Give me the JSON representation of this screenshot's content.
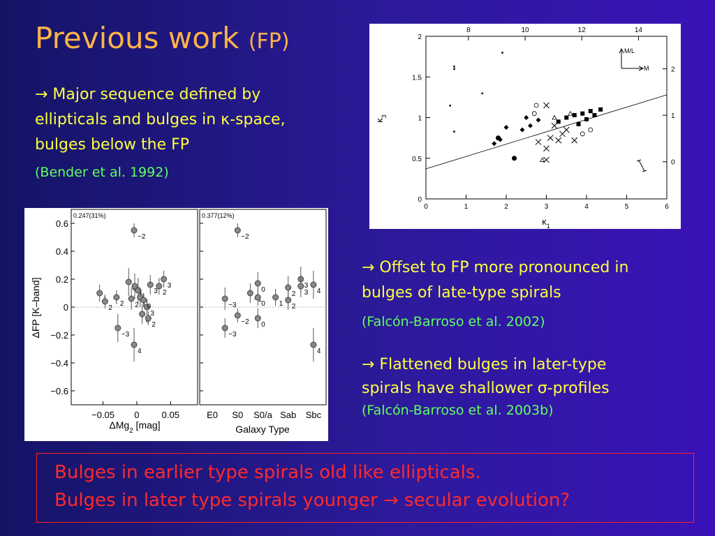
{
  "title": "Previous work",
  "title_suffix": "(FP)",
  "bullets": [
    {
      "lines": [
        "→ Major sequence defined by",
        "ellipticals and bulges in κ-space,",
        "bulges below the FP"
      ],
      "ref": "(Bender et al. 1992)"
    },
    {
      "lines": [
        "→ Offset to FP more pronounced in",
        "bulges of late-type spirals"
      ],
      "ref": "(Falcón-Barroso et al. 2002)"
    },
    {
      "lines": [
        "→ Flattened bulges in later-type",
        "spirals have shallower σ-profiles"
      ],
      "ref": "(Falcón-Barroso et al. 2003b)"
    }
  ],
  "conclusion": [
    "Bulges in earlier type spirals old like ellipticals.",
    "Bulges in later type spirals younger → secular evolution?"
  ],
  "figure_kappa": {
    "xlabel": "κ",
    "xlabel_sub": "1",
    "ylabel": "κ",
    "ylabel_sub": "3",
    "xlim": [
      0,
      6
    ],
    "ylim": [
      0,
      2
    ],
    "xticks": [
      0,
      1,
      2,
      3,
      4,
      5,
      6
    ],
    "yticks": [
      0,
      0.5,
      1,
      1.5,
      2
    ],
    "top_ticks": [
      8,
      10,
      12,
      14
    ],
    "top_lim": [
      6.5,
      15
    ],
    "right_ticks": [
      0,
      1,
      2
    ],
    "right_lim": [
      -0.8,
      2.7
    ],
    "inset_up": "M/L",
    "inset_right": "M",
    "fit": [
      [
        0,
        0.37
      ],
      [
        6,
        1.28
      ]
    ],
    "points": [
      {
        "x": 0.7,
        "y": 1.6,
        "m": "dot"
      },
      {
        "x": 0.7,
        "y": 1.63,
        "m": "dot"
      },
      {
        "x": 0.6,
        "y": 1.15,
        "m": "dot"
      },
      {
        "x": 0.7,
        "y": 0.83,
        "m": "dot"
      },
      {
        "x": 1.4,
        "y": 1.3,
        "m": "dot"
      },
      {
        "x": 1.9,
        "y": 1.8,
        "m": "dot"
      },
      {
        "x": 1.7,
        "y": 0.68,
        "m": "dia"
      },
      {
        "x": 1.85,
        "y": 0.73,
        "m": "dia"
      },
      {
        "x": 2.0,
        "y": 0.88,
        "m": "dia"
      },
      {
        "x": 2.4,
        "y": 0.85,
        "m": "dia"
      },
      {
        "x": 2.6,
        "y": 0.9,
        "m": "dia"
      },
      {
        "x": 2.5,
        "y": 1.0,
        "m": "dia"
      },
      {
        "x": 2.8,
        "y": 0.97,
        "m": "dia"
      },
      {
        "x": 2.2,
        "y": 0.5,
        "m": "circ"
      },
      {
        "x": 1.8,
        "y": 0.75,
        "m": "circ"
      },
      {
        "x": 2.7,
        "y": 1.05,
        "m": "open"
      },
      {
        "x": 2.75,
        "y": 1.15,
        "m": "open"
      },
      {
        "x": 3.3,
        "y": 0.95,
        "m": "sq"
      },
      {
        "x": 3.5,
        "y": 1.0,
        "m": "sq"
      },
      {
        "x": 3.7,
        "y": 1.03,
        "m": "sq"
      },
      {
        "x": 3.9,
        "y": 1.05,
        "m": "sq"
      },
      {
        "x": 4.1,
        "y": 1.08,
        "m": "sq"
      },
      {
        "x": 4.2,
        "y": 1.03,
        "m": "sq"
      },
      {
        "x": 4.35,
        "y": 1.1,
        "m": "sq"
      },
      {
        "x": 4.0,
        "y": 0.98,
        "m": "sq"
      },
      {
        "x": 3.8,
        "y": 0.92,
        "m": "sq"
      },
      {
        "x": 3.0,
        "y": 1.15,
        "m": "x"
      },
      {
        "x": 2.8,
        "y": 0.7,
        "m": "x"
      },
      {
        "x": 3.0,
        "y": 0.62,
        "m": "x"
      },
      {
        "x": 3.1,
        "y": 0.75,
        "m": "x"
      },
      {
        "x": 3.3,
        "y": 0.72,
        "m": "x"
      },
      {
        "x": 3.5,
        "y": 0.85,
        "m": "x"
      },
      {
        "x": 3.7,
        "y": 0.72,
        "m": "x"
      },
      {
        "x": 3.2,
        "y": 0.9,
        "m": "x"
      },
      {
        "x": 3.4,
        "y": 0.8,
        "m": "x"
      },
      {
        "x": 3.0,
        "y": 0.48,
        "m": "x"
      },
      {
        "x": 3.6,
        "y": 1.05,
        "m": "tri"
      },
      {
        "x": 3.2,
        "y": 1.0,
        "m": "tri"
      },
      {
        "x": 2.9,
        "y": 0.48,
        "m": "tri"
      },
      {
        "x": 3.9,
        "y": 0.8,
        "m": "open"
      },
      {
        "x": 4.1,
        "y": 0.85,
        "m": "open"
      }
    ]
  },
  "figure_fp": {
    "ylabel": "ΔFP [K–band]",
    "ylim": [
      -0.7,
      0.7
    ],
    "yticks": [
      {
        "value": 0.6,
        "label": "0.6"
      },
      {
        "value": 0.4,
        "label": "0.4"
      },
      {
        "value": 0.2,
        "label": "0.2"
      },
      0,
      {
        "value": -0.2,
        "label": "−0.2"
      },
      {
        "value": -0.4,
        "label": "−0.4"
      },
      {
        "value": -0.6,
        "label": "−0.6"
      }
    ],
    "left": {
      "note": "0.247(31%)",
      "xlim": [
        -0.097,
        0.09
      ],
      "xticks": [
        {
          "value": -0.05,
          "label": "−0.05"
        },
        0,
        0.05
      ],
      "xlabel": "ΔMg",
      "xlabel_sub": "2",
      "xlabel_rest": " [mag]",
      "points": [
        {
          "x": -0.055,
          "y": 0.1,
          "e": 0.06,
          "l": "1"
        },
        {
          "x": -0.047,
          "y": 0.04,
          "e": 0.05,
          "l": "2"
        },
        {
          "x": -0.03,
          "y": 0.07,
          "e": 0.05,
          "l": "2"
        },
        {
          "x": -0.012,
          "y": 0.18,
          "e": 0.1,
          "l": "0"
        },
        {
          "x": -0.008,
          "y": 0.06,
          "e": 0.08,
          "l": "2"
        },
        {
          "x": -0.004,
          "y": 0.55,
          "e": 0.05,
          "l": "−2"
        },
        {
          "x": -0.003,
          "y": 0.15,
          "e": 0.09,
          "l": "4"
        },
        {
          "x": 0.002,
          "y": 0.12,
          "e": 0.09,
          "l": "1"
        },
        {
          "x": 0.005,
          "y": 0.07,
          "e": 0.07,
          "l": "0"
        },
        {
          "x": 0.008,
          "y": -0.05,
          "e": 0.07,
          "l": "0"
        },
        {
          "x": 0.015,
          "y": 0.0,
          "e": 0.06,
          "l": "3"
        },
        {
          "x": 0.017,
          "y": -0.08,
          "e": 0.05,
          "l": "2"
        },
        {
          "x": 0.02,
          "y": 0.16,
          "e": 0.07,
          "l": "3"
        },
        {
          "x": 0.033,
          "y": 0.15,
          "e": 0.06,
          "l": "2"
        },
        {
          "x": 0.04,
          "y": 0.2,
          "e": 0.06,
          "l": "3"
        },
        {
          "x": -0.028,
          "y": -0.15,
          "e": 0.1,
          "l": "−3"
        },
        {
          "x": -0.004,
          "y": -0.27,
          "e": 0.12,
          "l": "4"
        },
        {
          "x": 0.01,
          "y": 0.05,
          "e": 0.05,
          "l": "0"
        }
      ]
    },
    "right": {
      "note": "0.377(12%)",
      "xlim": [
        -0.5,
        4.5
      ],
      "categories": [
        "E0",
        "S0",
        "S0/a",
        "Sab",
        "Sbc"
      ],
      "xlabel": "Galaxy Type",
      "points": [
        {
          "x": 0.5,
          "y": 0.06,
          "e": 0.08,
          "l": "−3"
        },
        {
          "x": 0.5,
          "y": -0.15,
          "e": 0.07,
          "l": "−3"
        },
        {
          "x": 1.0,
          "y": 0.55,
          "e": 0.05,
          "l": "−2"
        },
        {
          "x": 1.0,
          "y": -0.06,
          "e": 0.05,
          "l": "−2"
        },
        {
          "x": 1.5,
          "y": 0.1,
          "e": 0.07,
          "l": "−1"
        },
        {
          "x": 1.8,
          "y": 0.17,
          "e": 0.08,
          "l": "0"
        },
        {
          "x": 1.8,
          "y": 0.07,
          "e": 0.06,
          "l": "0"
        },
        {
          "x": 1.8,
          "y": -0.08,
          "e": 0.07,
          "l": "0"
        },
        {
          "x": 2.5,
          "y": 0.07,
          "e": 0.06,
          "l": "1"
        },
        {
          "x": 3.0,
          "y": 0.14,
          "e": 0.08,
          "l": "2"
        },
        {
          "x": 3.0,
          "y": 0.05,
          "e": 0.07,
          "l": "2"
        },
        {
          "x": 3.5,
          "y": 0.2,
          "e": 0.09,
          "l": "3"
        },
        {
          "x": 3.5,
          "y": 0.15,
          "e": 0.08,
          "l": "3"
        },
        {
          "x": 4.0,
          "y": 0.16,
          "e": 0.1,
          "l": "4"
        },
        {
          "x": 4.0,
          "y": -0.27,
          "e": 0.12,
          "l": "4"
        }
      ]
    }
  }
}
